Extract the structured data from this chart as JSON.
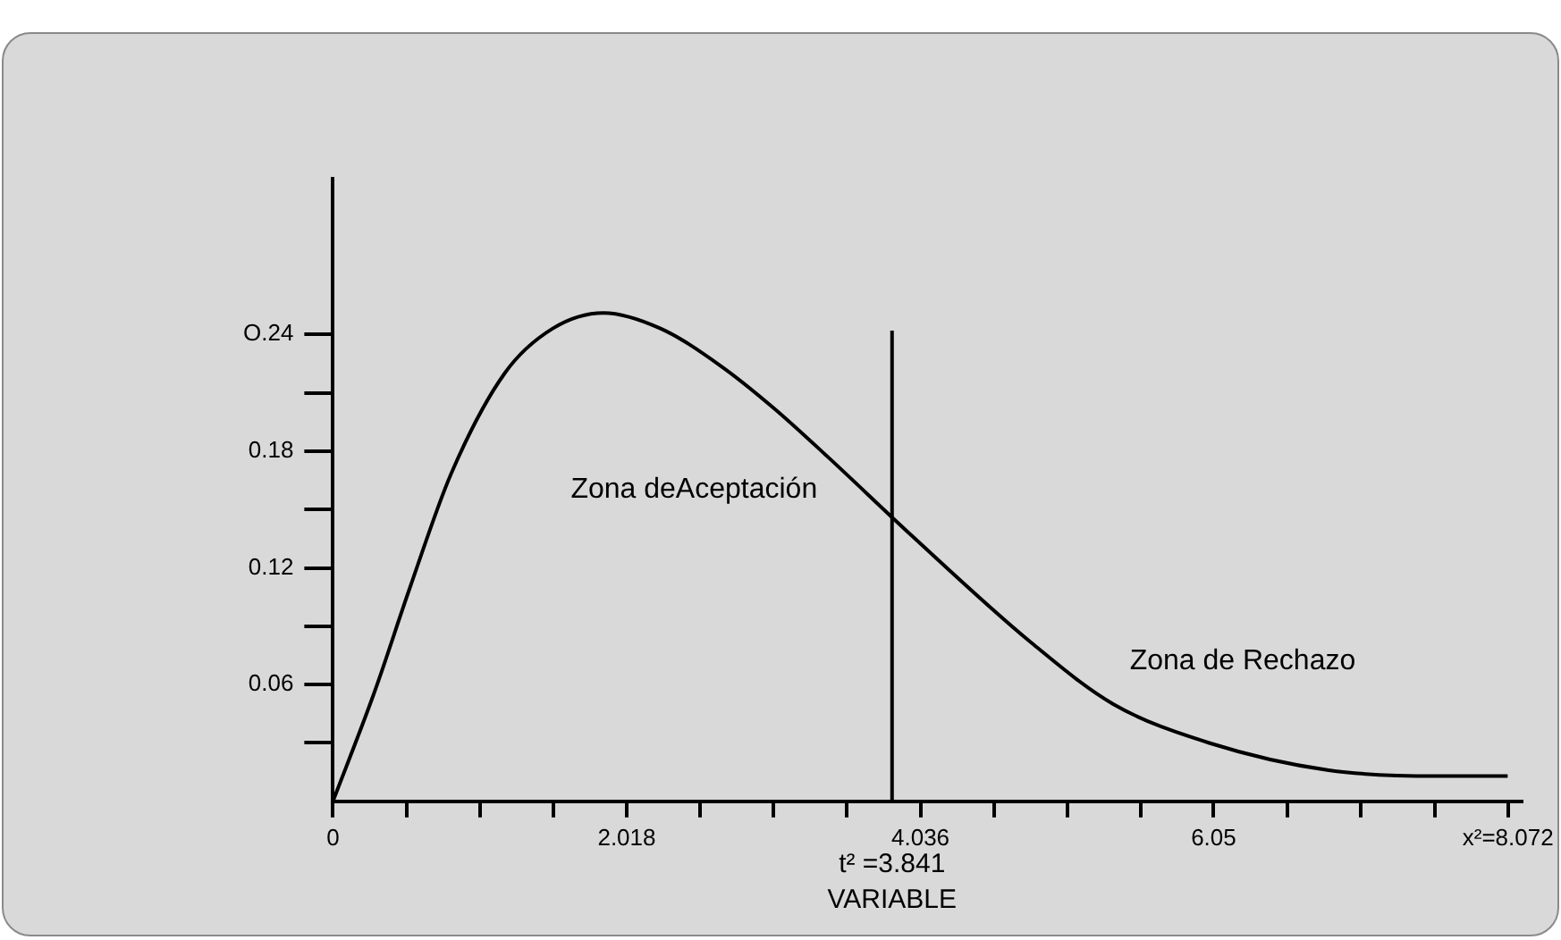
{
  "chart_data": {
    "type": "line",
    "xlabel": "VARIABLE",
    "x": [
      0,
      0.28,
      0.53,
      0.81,
      1.18,
      1.51,
      1.86,
      2.25,
      2.66,
      3.03,
      3.4,
      3.97,
      4.79,
      5.36,
      6.02,
      6.84,
      7.58,
      8.07
    ],
    "values": [
      0,
      0.055,
      0.11,
      0.168,
      0.22,
      0.243,
      0.251,
      0.243,
      0.224,
      0.202,
      0.177,
      0.137,
      0.082,
      0.05,
      0.03,
      0.016,
      0.013,
      0.013
    ],
    "color": "#000000",
    "marker": "none",
    "line_style": "solid",
    "grid": false,
    "legend": false,
    "xlim": [
      0,
      8.17
    ],
    "ylim": [
      0,
      0.32
    ],
    "xticks": [
      {
        "value": 0,
        "label": "0"
      },
      {
        "value": 0.5045,
        "label": null
      },
      {
        "value": 1.009,
        "label": null
      },
      {
        "value": 1.5135,
        "label": null
      },
      {
        "value": 2.018,
        "label": "2.018"
      },
      {
        "value": 2.5225,
        "label": null
      },
      {
        "value": 3.027,
        "label": null
      },
      {
        "value": 3.5315,
        "label": null
      },
      {
        "value": 4.036,
        "label": "4.036"
      },
      {
        "value": 4.5405,
        "label": null
      },
      {
        "value": 5.045,
        "label": null
      },
      {
        "value": 5.5495,
        "label": null
      },
      {
        "value": 6.05,
        "label": "6.05"
      },
      {
        "value": 6.5585,
        "label": null
      },
      {
        "value": 7.063,
        "label": null
      },
      {
        "value": 7.5675,
        "label": null
      },
      {
        "value": 8.072,
        "label": "x²=8.072"
      }
    ],
    "yticks": [
      {
        "value": 0.03,
        "label": null
      },
      0.06,
      {
        "value": 0.09,
        "label": null
      },
      0.12,
      {
        "value": 0.15,
        "label": null
      },
      0.18,
      {
        "value": 0.21,
        "label": null
      },
      {
        "value": 0.24,
        "label": "O.24"
      }
    ],
    "ref_lines": [
      {
        "axis": "x",
        "value": 3.841,
        "label": "t² =3.841",
        "color": "#000000",
        "line_style": "solid"
      }
    ],
    "annotations": [
      "Zona deAceptación",
      "Zona de Rechazo"
    ]
  }
}
